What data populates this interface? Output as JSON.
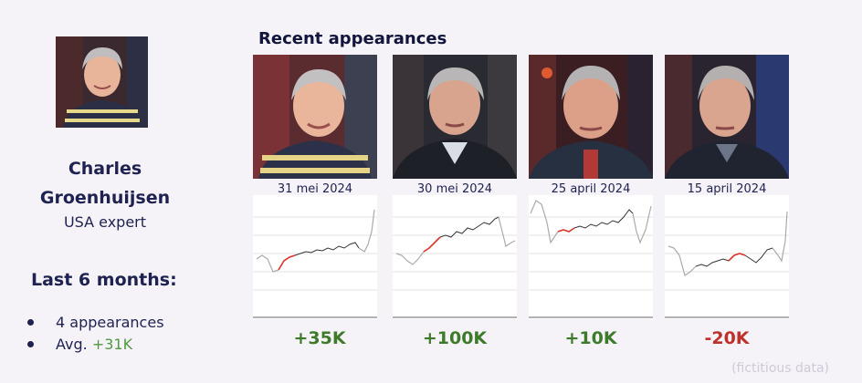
{
  "profile": {
    "name_line1": "Charles",
    "name_line2": "Groenhuijsen",
    "role": "USA expert",
    "photo_icon": "person-portrait-icon"
  },
  "stats": {
    "heading": "Last 6 months:",
    "appearances": "4 appearances",
    "avg_label": "Avg.",
    "avg_value": "+31K"
  },
  "section_title": "Recent appearances",
  "appearances": [
    {
      "date": "31 mei 2024",
      "delta": "+35K",
      "delta_color": "#3d7a2a"
    },
    {
      "date": "30 mei 2024",
      "delta": "+100K",
      "delta_color": "#3d7a2a"
    },
    {
      "date": "25 april 2024",
      "delta": "+10K",
      "delta_color": "#3d7a2a"
    },
    {
      "date": "15 april 2024",
      "delta": "-20K",
      "delta_color": "#c0302a"
    }
  ],
  "footnote": "(fictitious data)",
  "colors": {
    "accent_green": "#4f9a3e",
    "positive": "#3d7a2a",
    "negative": "#c0302a",
    "text": "#1e2250",
    "highlight_line": "#e0322a"
  }
}
